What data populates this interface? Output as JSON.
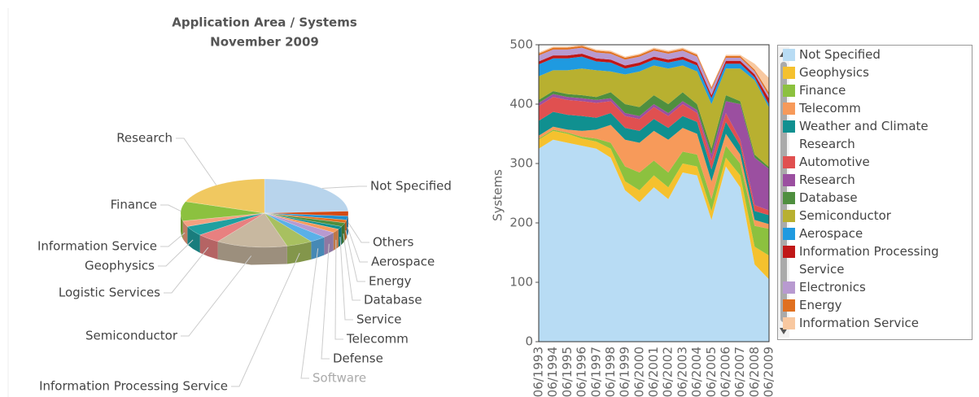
{
  "chart_data": [
    {
      "type": "pie",
      "title": "Application Area / Systems",
      "subtitle": "November 2009",
      "categories": [
        "Not Specified",
        "Others",
        "Aerospace",
        "Energy",
        "Database",
        "Service",
        "Telecomm",
        "Defense",
        "Software",
        "Information Processing Service",
        "Semiconductor",
        "Logistic Services",
        "Geophysics",
        "Information Service",
        "Finance",
        "Research"
      ],
      "values": [
        105,
        10,
        8,
        6,
        8,
        6,
        8,
        12,
        14,
        22,
        60,
        20,
        20,
        12,
        40,
        85
      ],
      "colors": [
        "#b8d4ec",
        "#d44a14",
        "#2090d0",
        "#e07020",
        "#4f8f3f",
        "#109090",
        "#f79a5a",
        "#b89ad0",
        "#5ab0e8",
        "#a8c060",
        "#c8b8a0",
        "#e88080",
        "#20a0a0",
        "#f4a080",
        "#8cc13f",
        "#f0c860"
      ]
    },
    {
      "type": "area",
      "ylabel": "Systems",
      "categories": [
        "06/1993",
        "06/1994",
        "06/1995",
        "06/1996",
        "06/1997",
        "06/1998",
        "06/1999",
        "06/2000",
        "06/2001",
        "06/2002",
        "06/2003",
        "06/2004",
        "06/2005",
        "06/2006",
        "06/2007",
        "06/2008",
        "06/2009"
      ],
      "ylim": [
        0,
        500
      ],
      "yticks": [
        0,
        100,
        200,
        300,
        400,
        500
      ],
      "series": [
        {
          "name": "Not Specified",
          "color": "#b8dcf4",
          "values": [
            325,
            340,
            335,
            330,
            325,
            310,
            255,
            235,
            260,
            240,
            285,
            280,
            205,
            295,
            260,
            130,
            105
          ]
        },
        {
          "name": "Geophysics",
          "color": "#f5c12e",
          "values": [
            15,
            15,
            15,
            12,
            12,
            15,
            15,
            20,
            20,
            20,
            15,
            15,
            15,
            15,
            20,
            30,
            40
          ]
        },
        {
          "name": "Finance",
          "color": "#8cc13f",
          "values": [
            2,
            2,
            2,
            3,
            5,
            10,
            25,
            30,
            25,
            25,
            20,
            20,
            20,
            20,
            20,
            35,
            45
          ]
        },
        {
          "name": "Telecomm",
          "color": "#f79a5a",
          "values": [
            5,
            5,
            5,
            10,
            15,
            30,
            45,
            50,
            50,
            55,
            40,
            35,
            30,
            20,
            15,
            10,
            8
          ]
        },
        {
          "name": "Weather and Climate Research",
          "color": "#109090",
          "values": [
            25,
            25,
            25,
            25,
            20,
            20,
            20,
            20,
            20,
            20,
            20,
            20,
            20,
            20,
            15,
            15,
            15
          ]
        },
        {
          "name": "Automotive",
          "color": "#e05050",
          "values": [
            25,
            25,
            25,
            25,
            25,
            20,
            20,
            20,
            20,
            20,
            20,
            15,
            15,
            15,
            10,
            10,
            8
          ]
        },
        {
          "name": "Research",
          "color": "#9b4fa0",
          "values": [
            5,
            5,
            5,
            5,
            5,
            5,
            5,
            5,
            5,
            5,
            5,
            5,
            10,
            20,
            60,
            80,
            70
          ]
        },
        {
          "name": "Database",
          "color": "#4f8f3f",
          "values": [
            5,
            5,
            5,
            5,
            5,
            10,
            15,
            15,
            15,
            15,
            15,
            10,
            10,
            10,
            5,
            5,
            3
          ]
        },
        {
          "name": "Semiconductor",
          "color": "#b8b030",
          "values": [
            40,
            35,
            40,
            45,
            45,
            35,
            50,
            60,
            50,
            60,
            45,
            55,
            75,
            45,
            55,
            125,
            100
          ]
        },
        {
          "name": "Aerospace",
          "color": "#1f9ae0",
          "values": [
            20,
            20,
            20,
            20,
            15,
            15,
            10,
            10,
            10,
            10,
            10,
            10,
            10,
            8,
            8,
            5,
            5
          ]
        },
        {
          "name": "Information Processing Service",
          "color": "#c01818",
          "values": [
            5,
            5,
            5,
            5,
            5,
            5,
            5,
            5,
            5,
            5,
            5,
            5,
            5,
            5,
            5,
            5,
            10
          ]
        },
        {
          "name": "Electronics",
          "color": "#b89ad0",
          "values": [
            10,
            10,
            10,
            10,
            10,
            10,
            10,
            10,
            10,
            10,
            10,
            10,
            10,
            5,
            5,
            5,
            5
          ]
        },
        {
          "name": "Energy",
          "color": "#e07020",
          "values": [
            3,
            3,
            3,
            3,
            3,
            3,
            3,
            3,
            3,
            3,
            3,
            3,
            3,
            3,
            3,
            3,
            5
          ]
        },
        {
          "name": "Information Service",
          "color": "#f8c8a0",
          "values": [
            2,
            2,
            2,
            2,
            2,
            2,
            2,
            2,
            2,
            2,
            2,
            2,
            2,
            2,
            2,
            10,
            25
          ]
        }
      ]
    }
  ]
}
